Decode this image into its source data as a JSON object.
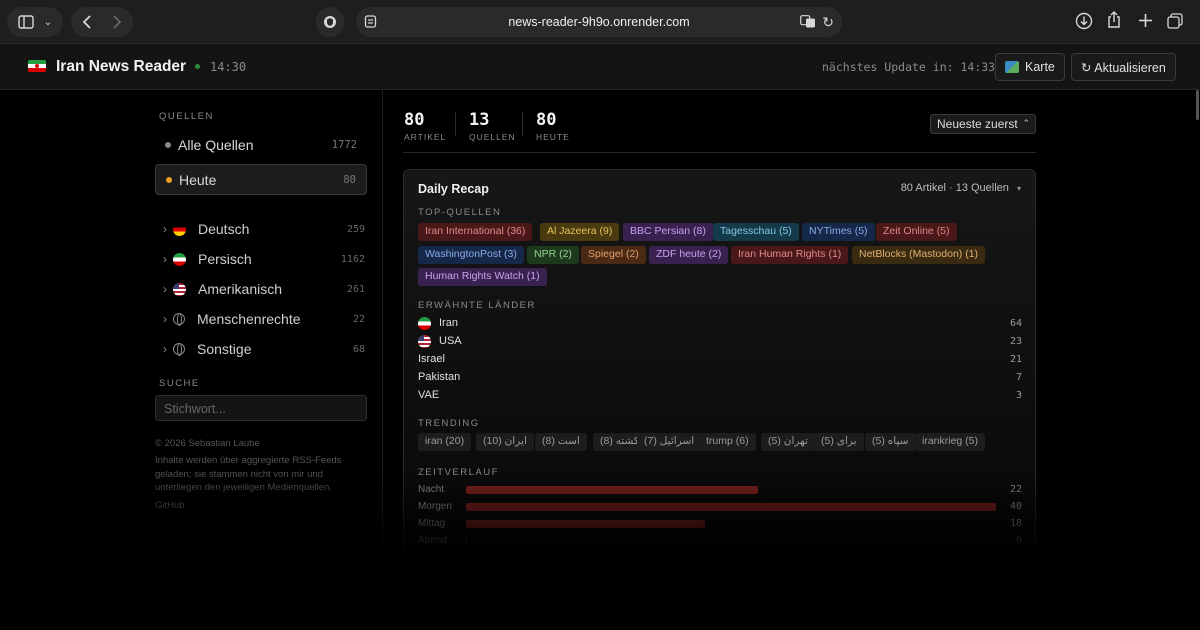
{
  "browser": {
    "url": "news-reader-9h9o.onrender.com"
  },
  "header": {
    "title": "Iran News Reader",
    "time": "14:30",
    "next_update": "nächstes Update in: 14:33",
    "map_label": "Karte",
    "refresh_label": "↻ Aktualisieren"
  },
  "sidebar": {
    "sources_title": "QUELLEN",
    "sources": [
      {
        "label": "Alle Quellen",
        "count": "1772"
      },
      {
        "label": "Heute",
        "count": "80"
      }
    ],
    "categories": [
      {
        "label": "Deutsch",
        "count": "259"
      },
      {
        "label": "Persisch",
        "count": "1162"
      },
      {
        "label": "Amerikanisch",
        "count": "261"
      },
      {
        "label": "Menschenrechte",
        "count": "22"
      },
      {
        "label": "Sonstige",
        "count": "68"
      }
    ],
    "search_title": "SUCHE",
    "search_placeholder": "Stichwort...",
    "footer_copyright": "© 2026 Sebastian Laube",
    "footer_text": "Inhalte werden über aggregierte RSS-Feeds geladen; sie stammen nicht von mir und unterliegen den jeweiligen Medienquellen.",
    "footer_link": "GitHub"
  },
  "stats": [
    {
      "value": "80",
      "label": "ARTIKEL"
    },
    {
      "value": "13",
      "label": "QUELLEN"
    },
    {
      "value": "80",
      "label": "HEUTE"
    }
  ],
  "sort": {
    "selected": "Neueste zuerst"
  },
  "recap": {
    "title": "Daily Recap",
    "meta": "80 Artikel · 13 Quellen",
    "top_sources_title": "TOP-QUELLEN",
    "top_sources": [
      {
        "label": "Iran International (36)",
        "bg": "#4a1818",
        "fg": "#e08a8a"
      },
      {
        "label": "Al Jazeera (9)",
        "bg": "#4a3a10",
        "fg": "#e5c15a"
      },
      {
        "label": "BBC Persian (8)",
        "bg": "#3a2250",
        "fg": "#c7a2ee"
      },
      {
        "label": "Tagesschau (5)",
        "bg": "#143a4a",
        "fg": "#7fc6e0"
      },
      {
        "label": "NYTimes (5)",
        "bg": "#16284a",
        "fg": "#89a9e6"
      },
      {
        "label": "Zeit Online (5)",
        "bg": "#4a1818",
        "fg": "#e08a8a"
      },
      {
        "label": "WashingtonPost (3)",
        "bg": "#16284a",
        "fg": "#89a9e6"
      },
      {
        "label": "NPR (2)",
        "bg": "#1e3a1e",
        "fg": "#93d38d"
      },
      {
        "label": "Spiegel (2)",
        "bg": "#4a2a14",
        "fg": "#e5a06a"
      },
      {
        "label": "ZDF heute (2)",
        "bg": "#3a2250",
        "fg": "#c7a2ee"
      },
      {
        "label": "Iran Human Rights (1)",
        "bg": "#4a1818",
        "fg": "#e08a8a"
      },
      {
        "label": "NetBlocks (Mastodon) (1)",
        "bg": "#3a2a12",
        "fg": "#e0b070"
      },
      {
        "label": "Human Rights Watch (1)",
        "bg": "#3a2250",
        "fg": "#c7a2ee"
      }
    ],
    "countries_title": "ERWÄHNTE LÄNDER",
    "countries": [
      {
        "label": "Iran",
        "count": "64",
        "flag": "flag-ir"
      },
      {
        "label": "USA",
        "count": "23",
        "flag": "flag-us"
      },
      {
        "label": "Israel",
        "count": "21",
        "flag": ""
      },
      {
        "label": "Pakistan",
        "count": "7",
        "flag": ""
      },
      {
        "label": "VAE",
        "count": "3",
        "flag": ""
      }
    ],
    "trending_title": "TRENDING",
    "trending": [
      "iran (20)",
      "ایران (10)",
      "است (8)",
      "کشته (8)",
      "اسرائیل (7)",
      "trump (6)",
      "تهران (5)",
      "برای (5)",
      "سپاه (5)",
      "irankrieg (5)"
    ],
    "timeline_title": "ZEITVERLAUF",
    "timeline": [
      {
        "label": "Nacht",
        "count": 22
      },
      {
        "label": "Morgen",
        "count": 40
      },
      {
        "label": "Mittag",
        "count": 18
      },
      {
        "label": "Abend",
        "count": 0
      }
    ]
  }
}
